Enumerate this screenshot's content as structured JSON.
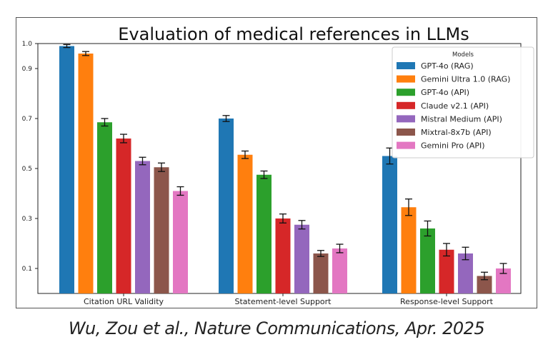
{
  "caption": "Wu, Zou et al., Nature Communications, Apr. 2025",
  "chart_data": {
    "type": "bar",
    "title": "Evaluation of medical references in LLMs",
    "xlabel": "",
    "ylabel": "",
    "ylim": [
      0,
      1.0
    ],
    "yticks": [
      "1.0",
      "0.9",
      "0.7",
      "0.5",
      "0.3",
      "0.1"
    ],
    "ytick_values": [
      1.0,
      0.9,
      0.7,
      0.5,
      0.3,
      0.1
    ],
    "categories": [
      "Citation URL Validity",
      "Statement-level Support",
      "Response-level Support"
    ],
    "legend": {
      "title": "Models",
      "placement": "top-right"
    },
    "series": [
      {
        "name": "GPT-4o (RAG)",
        "color": "#1f77b4",
        "values": [
          0.99,
          0.7,
          0.55
        ],
        "errors": [
          0.006,
          0.012,
          0.032
        ]
      },
      {
        "name": "Gemini Ultra 1.0 (RAG)",
        "color": "#ff7f0e",
        "values": [
          0.96,
          0.555,
          0.345
        ],
        "errors": [
          0.008,
          0.015,
          0.033
        ]
      },
      {
        "name": "GPT-4o (API)",
        "color": "#2ca02c",
        "values": [
          0.685,
          0.475,
          0.26
        ],
        "errors": [
          0.015,
          0.015,
          0.03
        ]
      },
      {
        "name": "Claude v2.1 (API)",
        "color": "#d62728",
        "values": [
          0.62,
          0.3,
          0.175
        ],
        "errors": [
          0.017,
          0.018,
          0.025
        ]
      },
      {
        "name": "Mistral Medium (API)",
        "color": "#9467bd",
        "values": [
          0.53,
          0.275,
          0.16
        ],
        "errors": [
          0.015,
          0.017,
          0.025
        ]
      },
      {
        "name": "Mixtral-8x7b (API)",
        "color": "#8c564b",
        "values": [
          0.505,
          0.16,
          0.07
        ],
        "errors": [
          0.017,
          0.012,
          0.015
        ]
      },
      {
        "name": "Gemini Pro (API)",
        "color": "#e377c2",
        "values": [
          0.41,
          0.18,
          0.1
        ],
        "errors": [
          0.017,
          0.017,
          0.02
        ]
      }
    ]
  }
}
